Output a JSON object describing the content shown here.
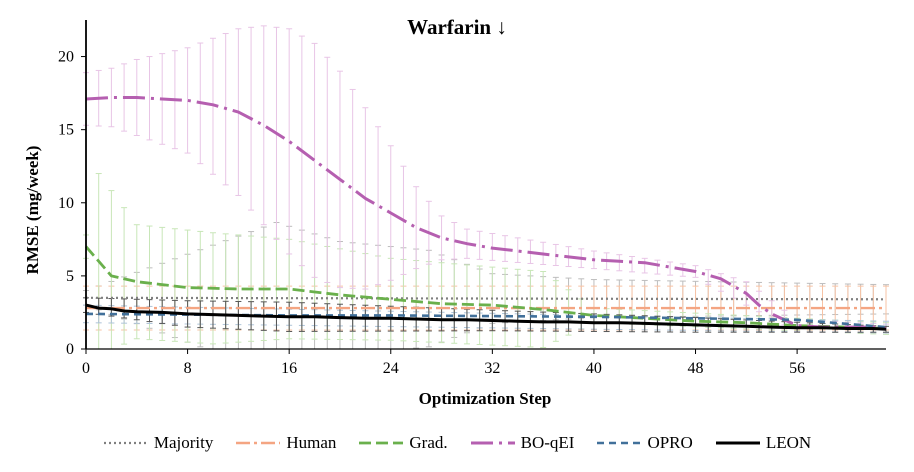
{
  "chart_data": {
    "type": "line",
    "title": "Warfarin ↓",
    "xlabel": "Optimization Step",
    "ylabel": "RMSE (mg/week)",
    "xlim": [
      0,
      63
    ],
    "ylim": [
      0,
      22.5
    ],
    "xticks": [
      "0",
      "8",
      "16",
      "24",
      "32",
      "40",
      "48",
      "56"
    ],
    "xtick_values": [
      0,
      8,
      16,
      24,
      32,
      40,
      48,
      56
    ],
    "yticks": [
      "0",
      "5",
      "10",
      "15",
      "20"
    ],
    "ytick_values": [
      0,
      5,
      10,
      15,
      20
    ],
    "error_bar_x": [
      0,
      1,
      2,
      3,
      4,
      5,
      6,
      7,
      8,
      9,
      10,
      11,
      12,
      13,
      14,
      15,
      16,
      17,
      18,
      19,
      20,
      21,
      22,
      23,
      24,
      25,
      26,
      27,
      28,
      29,
      30,
      31,
      32,
      33,
      34,
      35,
      36,
      37,
      38,
      39,
      40,
      41,
      42,
      43,
      44,
      45,
      46,
      47,
      48,
      49,
      50,
      51,
      52,
      53,
      54,
      55,
      56,
      57,
      58,
      59,
      60,
      61,
      62,
      63
    ],
    "legend_position": "bottom",
    "series": [
      {
        "name": "Majority",
        "color": "#7f7f7f",
        "dash": "2,3",
        "width": 2.2,
        "err_color": "#bdbdbd",
        "x": [
          0,
          63
        ],
        "values": [
          3.5,
          3.4
        ],
        "err_points": [
          [
            0,
            3.5,
            0.5
          ],
          [
            15,
            3.45,
            5.2
          ],
          [
            20,
            3.45,
            3.9
          ],
          [
            27,
            3.45,
            3.3
          ],
          [
            32,
            3.45,
            1.7
          ],
          [
            40,
            3.45,
            1.3
          ],
          [
            63,
            3.4,
            1.0
          ]
        ]
      },
      {
        "name": "Human",
        "color": "#f4a582",
        "dash": "14,4,3,4",
        "width": 2.4,
        "err_color": "#f7c3a5",
        "x": [
          0,
          63
        ],
        "values": [
          2.8,
          2.8
        ],
        "err_points": [
          [
            0,
            2.8,
            1.5
          ],
          [
            63,
            2.8,
            1.5
          ]
        ]
      },
      {
        "name": "Grad.",
        "color": "#6ab04c",
        "dash": "12,5",
        "width": 2.8,
        "err_color": "#c8e6b8",
        "x": [
          0,
          2,
          4,
          8,
          12,
          16,
          20,
          24,
          28,
          32,
          36,
          40,
          44,
          48,
          52,
          56,
          60,
          63
        ],
        "values": [
          7.0,
          5.0,
          4.6,
          4.2,
          4.1,
          4.1,
          3.7,
          3.4,
          3.1,
          3.0,
          2.7,
          2.3,
          2.1,
          1.9,
          1.8,
          1.6,
          1.5,
          1.4
        ],
        "err_points": [
          [
            0,
            7.0,
            0.8
          ],
          [
            1,
            5.8,
            6.2
          ],
          [
            4,
            4.6,
            3.9
          ],
          [
            10,
            4.15,
            3.8
          ],
          [
            16,
            4.1,
            3.4
          ],
          [
            24,
            3.4,
            2.8
          ],
          [
            36,
            2.7,
            2.6
          ],
          [
            40,
            2.3,
            0.5
          ],
          [
            63,
            1.4,
            0.4
          ]
        ]
      },
      {
        "name": "BO-qEI",
        "color": "#b55fb0",
        "dash": "22,6,3,6",
        "width": 3.0,
        "err_color": "#e8c5e6",
        "x": [
          0,
          2,
          4,
          6,
          8,
          10,
          12,
          14,
          16,
          18,
          20,
          22,
          24,
          26,
          28,
          30,
          32,
          34,
          36,
          38,
          40,
          42,
          44,
          46,
          48,
          50,
          52,
          53,
          54,
          56,
          58,
          60,
          62,
          63
        ],
        "values": [
          17.1,
          17.2,
          17.2,
          17.1,
          17.0,
          16.7,
          16.2,
          15.3,
          14.2,
          12.9,
          11.6,
          10.3,
          9.3,
          8.3,
          7.6,
          7.2,
          6.9,
          6.7,
          6.5,
          6.3,
          6.1,
          6.0,
          5.9,
          5.6,
          5.3,
          4.8,
          3.8,
          3.0,
          2.4,
          1.6,
          1.5,
          1.5,
          1.5,
          1.4
        ],
        "err_points": [
          [
            0,
            17.1,
            1.8
          ],
          [
            2,
            17.2,
            2.0
          ],
          [
            4,
            17.2,
            2.6
          ],
          [
            8,
            17.0,
            3.6
          ],
          [
            12,
            16.2,
            5.7
          ],
          [
            14,
            15.3,
            6.8
          ],
          [
            16,
            14.2,
            7.7
          ],
          [
            18,
            12.9,
            8.0
          ],
          [
            20,
            11.6,
            7.4
          ],
          [
            22,
            10.3,
            6.2
          ],
          [
            24,
            9.3,
            4.6
          ],
          [
            26,
            8.3,
            2.8
          ],
          [
            28,
            7.6,
            1.5
          ],
          [
            30,
            7.2,
            1.0
          ],
          [
            40,
            6.1,
            0.6
          ],
          [
            48,
            5.3,
            0.4
          ],
          [
            52,
            3.8,
            0.8
          ],
          [
            56,
            1.6,
            0.4
          ],
          [
            63,
            1.4,
            0.3
          ]
        ]
      },
      {
        "name": "OPRO",
        "color": "#41709a",
        "dash": "7,5",
        "width": 2.6,
        "err_color": "#aec4d8",
        "x": [
          0,
          8,
          16,
          24,
          32,
          40,
          48,
          56,
          63
        ],
        "values": [
          2.4,
          2.35,
          2.3,
          2.3,
          2.25,
          2.2,
          2.1,
          2.0,
          1.5
        ],
        "err_points": [
          [
            0,
            2.4,
            0.6
          ],
          [
            63,
            1.5,
            0.4
          ]
        ]
      },
      {
        "name": "LEON",
        "color": "#000000",
        "dash": "",
        "width": 3.0,
        "err_color": "#555555",
        "x": [
          0,
          1,
          2,
          3,
          4,
          6,
          8,
          10,
          12,
          14,
          16,
          18,
          20,
          22,
          24,
          26,
          28,
          30,
          32,
          34,
          36,
          38,
          40,
          42,
          44,
          46,
          48,
          50,
          52,
          54,
          56,
          58,
          60,
          62,
          63
        ],
        "values": [
          3.0,
          2.8,
          2.75,
          2.6,
          2.55,
          2.5,
          2.4,
          2.35,
          2.3,
          2.25,
          2.2,
          2.2,
          2.15,
          2.1,
          2.1,
          2.05,
          2.0,
          2.0,
          1.95,
          1.9,
          1.85,
          1.85,
          1.8,
          1.8,
          1.75,
          1.7,
          1.65,
          1.6,
          1.55,
          1.5,
          1.45,
          1.45,
          1.4,
          1.4,
          1.35
        ],
        "err_points": [
          [
            0,
            3.0,
            0.5
          ],
          [
            8,
            2.4,
            0.9
          ],
          [
            16,
            2.2,
            1.0
          ],
          [
            32,
            1.95,
            0.7
          ],
          [
            48,
            1.65,
            0.5
          ],
          [
            63,
            1.35,
            0.2
          ]
        ]
      }
    ]
  }
}
